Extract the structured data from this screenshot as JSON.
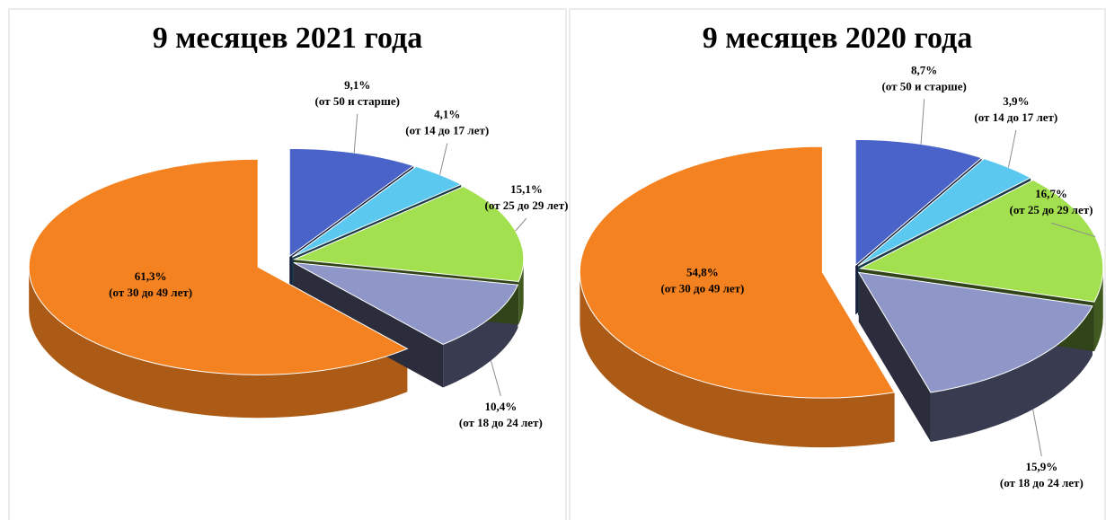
{
  "chart_data": [
    {
      "type": "pie",
      "title": "9 месяцев 2021 года",
      "categories": [
        "(от 50 и старше)",
        "(от 14 до 17 лет)",
        "(от 25 до 29 лет)",
        "(от 18 до 24 лет)",
        "(от 30 до 49 лет)"
      ],
      "values": [
        9.1,
        4.1,
        15.1,
        10.4,
        61.3
      ],
      "value_labels": [
        "9,1%",
        "4,1%",
        "15,1%",
        "10,4%",
        "61,3%"
      ],
      "colors": [
        "#4a63c8",
        "#5bc8f0",
        "#a3e04f",
        "#8f97c8",
        "#f58220"
      ]
    },
    {
      "type": "pie",
      "title": "9 месяцев 2020 года",
      "categories": [
        "(от 50 и старше)",
        "(от 14 до 17 лет)",
        "(от 25 до 29 лет)",
        "(от 18 до 24 лет)",
        "(от 30 до 49 лет)"
      ],
      "values": [
        8.7,
        3.9,
        16.7,
        15.9,
        54.8
      ],
      "value_labels": [
        "8,7%",
        "3,9%",
        "16,7%",
        "15,9%",
        "54,8%"
      ],
      "colors": [
        "#4a63c8",
        "#5bc8f0",
        "#a3e04f",
        "#8f97c8",
        "#f58220"
      ]
    }
  ]
}
